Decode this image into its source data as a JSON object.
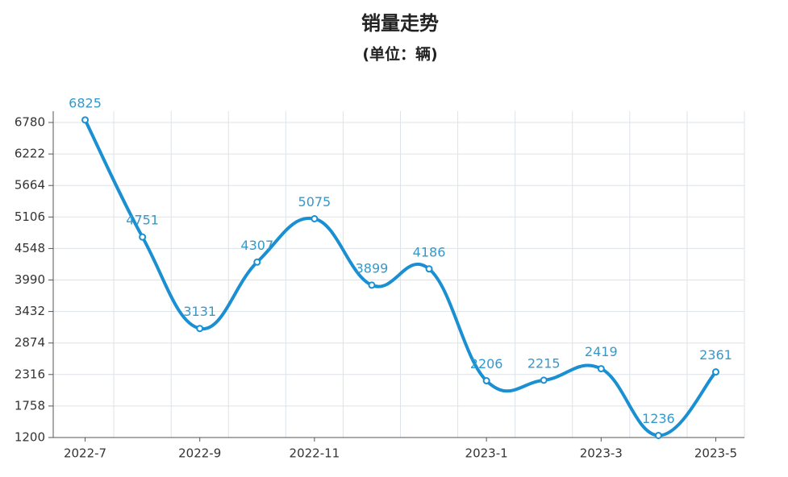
{
  "chart_data": {
    "type": "line",
    "title": "销量走势",
    "subtitle": "(单位：辆)",
    "categories": [
      "2022-7",
      null,
      "2022-9",
      null,
      "2022-11",
      null,
      null,
      "2023-1",
      null,
      "2023-3",
      null,
      "2023-5"
    ],
    "series": [
      {
        "name": "销量",
        "color": "#1a8fd1",
        "values": [
          6825,
          4751,
          3131,
          4307,
          5075,
          3899,
          4186,
          2206,
          2215,
          2419,
          1236,
          2361
        ]
      }
    ],
    "ylim": [
      1200,
      6980
    ],
    "yticks": [
      1200,
      1758,
      2316,
      2874,
      3432,
      3990,
      4548,
      5106,
      5664,
      6222,
      6780
    ],
    "grid": true
  }
}
